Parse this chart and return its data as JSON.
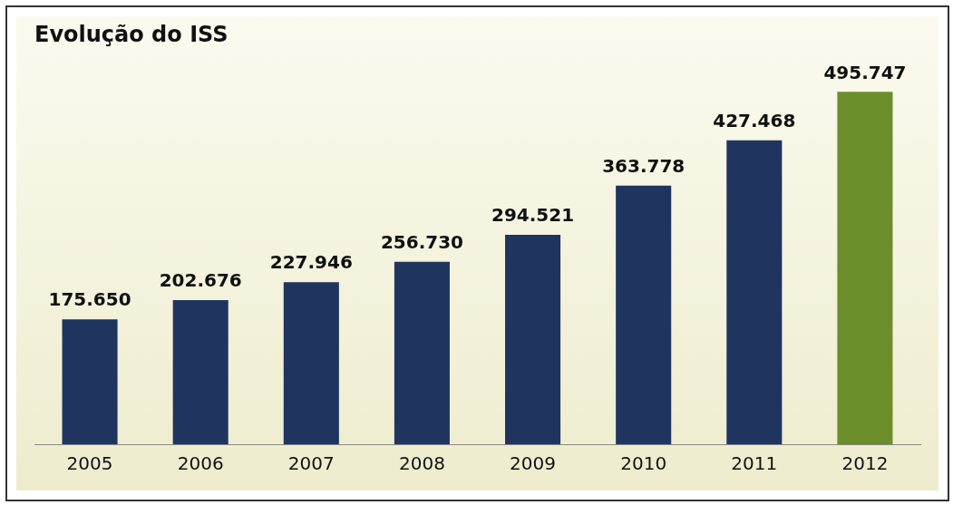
{
  "chart_data": {
    "type": "bar",
    "title": "Evolução do ISS",
    "categories": [
      "2005",
      "2006",
      "2007",
      "2008",
      "2009",
      "2010",
      "2011",
      "2012"
    ],
    "values": [
      175650,
      202676,
      227946,
      256730,
      294521,
      363778,
      427468,
      495747
    ],
    "value_labels": [
      "175.650",
      "202.676",
      "227.946",
      "256.730",
      "294.521",
      "363.778",
      "427.468",
      "495.747"
    ],
    "colors": [
      "#1f3560",
      "#1f3560",
      "#1f3560",
      "#1f3560",
      "#1f3560",
      "#1f3560",
      "#1f3560",
      "#6b8e2a"
    ],
    "grid": false,
    "legend": false,
    "tick_labels": "x"
  }
}
